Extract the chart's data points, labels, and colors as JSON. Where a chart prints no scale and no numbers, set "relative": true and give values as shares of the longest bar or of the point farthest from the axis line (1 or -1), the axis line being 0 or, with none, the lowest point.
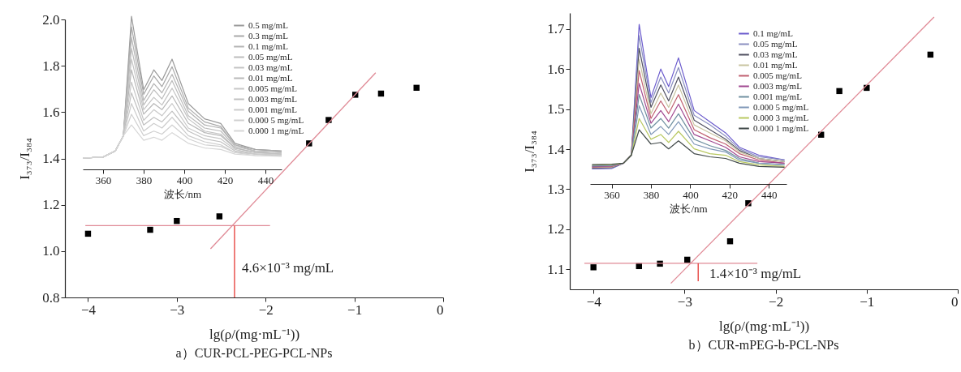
{
  "chart_data": [
    {
      "type": "scatter",
      "title": "a）CUR-PCL-PEG-PCL-NPs",
      "xlabel": "lg(ρ/(mg·mL⁻¹))",
      "ylabel": "I₃₇₃/I₃₈₄",
      "xlim": [
        -4.26,
        0
      ],
      "xticks": [
        -4,
        -3,
        -2,
        -1,
        0
      ],
      "ylim": [
        0.8,
        2.0
      ],
      "yticks": [
        0.8,
        {
          "value": 1.0,
          "label": "1.0"
        },
        1.2,
        1.4,
        1.6,
        1.8,
        {
          "value": 2.0,
          "label": "2.0"
        }
      ],
      "grid": false,
      "legend": false,
      "series": [
        {
          "marker": "square",
          "color": "#000000",
          "x": [
            -4,
            -3.3,
            -3,
            -2.52,
            -1.51,
            -1.29,
            -0.99,
            -0.7,
            -0.3
          ],
          "values": [
            1.075,
            1.092,
            1.13,
            1.15,
            1.465,
            1.566,
            1.675,
            1.68,
            1.705
          ]
        },
        {
          "type": "line",
          "color": "#e08a96",
          "x": [
            -4.03,
            -1.95
          ],
          "values": [
            1.11,
            1.11
          ]
        },
        {
          "type": "line",
          "color": "#e08a96",
          "x": [
            -2.62,
            -0.76
          ],
          "values": [
            1.01,
            1.77
          ]
        },
        {
          "type": "line",
          "color": "#e53935",
          "x": [
            -2.35,
            -2.35
          ],
          "values": [
            1.11,
            0.8
          ]
        }
      ],
      "annotations": [
        "4.6×10⁻³ mg/mL"
      ]
    },
    {
      "type": "line",
      "relative": true,
      "xlabel": "波长/nm",
      "xlim": [
        350,
        448
      ],
      "xticks": [
        360,
        380,
        400,
        420,
        440
      ],
      "tick_labels": "x",
      "grid": false,
      "legend": "top right",
      "x": [
        350,
        360,
        366,
        370,
        374,
        380,
        385,
        389,
        394,
        402,
        410,
        418,
        425,
        435,
        448
      ],
      "series": [
        {
          "name": "0.5 mg/mL",
          "color": "#9a9a9a",
          "values": [
            0.074,
            0.08,
            0.12,
            0.22,
            1.0,
            0.52,
            0.65,
            0.58,
            0.72,
            0.43,
            0.33,
            0.3,
            0.17,
            0.13,
            0.12
          ]
        },
        {
          "name": "0.3 mg/mL",
          "color": "#a8a8a8",
          "values": [
            0.074,
            0.08,
            0.12,
            0.22,
            0.93,
            0.49,
            0.61,
            0.54,
            0.67,
            0.4,
            0.31,
            0.28,
            0.16,
            0.13,
            0.12
          ]
        },
        {
          "name": "0.1 mg/mL",
          "color": "#b4b4b4",
          "values": [
            0.074,
            0.08,
            0.12,
            0.22,
            0.86,
            0.45,
            0.56,
            0.5,
            0.62,
            0.38,
            0.29,
            0.27,
            0.16,
            0.12,
            0.11
          ]
        },
        {
          "name": "0.05 mg/mL",
          "color": "#bcbcbc",
          "values": [
            0.074,
            0.08,
            0.12,
            0.22,
            0.79,
            0.42,
            0.52,
            0.46,
            0.58,
            0.35,
            0.27,
            0.25,
            0.15,
            0.12,
            0.11
          ]
        },
        {
          "name": "0.03 mg/mL",
          "color": "#c4c4c4",
          "values": [
            0.074,
            0.08,
            0.12,
            0.22,
            0.72,
            0.39,
            0.47,
            0.42,
            0.53,
            0.33,
            0.25,
            0.23,
            0.14,
            0.11,
            0.1
          ]
        },
        {
          "name": "0.01 mg/mL",
          "color": "#b8b8b8",
          "values": [
            0.074,
            0.08,
            0.12,
            0.22,
            0.65,
            0.36,
            0.43,
            0.39,
            0.48,
            0.3,
            0.24,
            0.22,
            0.14,
            0.11,
            0.1
          ]
        },
        {
          "name": "0.005 mg/mL",
          "color": "#c8c8c8",
          "values": [
            0.074,
            0.08,
            0.12,
            0.22,
            0.57,
            0.32,
            0.39,
            0.35,
            0.43,
            0.27,
            0.22,
            0.2,
            0.13,
            0.1,
            0.1
          ]
        },
        {
          "name": "0.003 mg/mL",
          "color": "#c0c0c0",
          "values": [
            0.074,
            0.08,
            0.12,
            0.22,
            0.5,
            0.29,
            0.34,
            0.31,
            0.38,
            0.25,
            0.2,
            0.18,
            0.12,
            0.1,
            0.09
          ]
        },
        {
          "name": "0.001 mg/mL",
          "color": "#cccccc",
          "values": [
            0.074,
            0.08,
            0.12,
            0.22,
            0.43,
            0.25,
            0.3,
            0.27,
            0.34,
            0.22,
            0.18,
            0.16,
            0.11,
            0.1,
            0.09
          ]
        },
        {
          "name": "0.000 5 mg/mL",
          "color": "#d0d0d0",
          "values": [
            0.074,
            0.08,
            0.12,
            0.22,
            0.36,
            0.22,
            0.25,
            0.23,
            0.29,
            0.2,
            0.16,
            0.15,
            0.11,
            0.09,
            0.09
          ]
        },
        {
          "name": "0.000 1 mg/mL",
          "color": "#d6d6d6",
          "values": [
            0.074,
            0.08,
            0.12,
            0.22,
            0.29,
            0.19,
            0.21,
            0.19,
            0.24,
            0.17,
            0.14,
            0.13,
            0.1,
            0.09,
            0.085
          ]
        }
      ]
    },
    {
      "type": "scatter",
      "title": "b）CUR-mPEG-b-PCL-NPs",
      "xlabel": "lg(ρ/(mg·mL⁻¹))",
      "ylabel": "I₃₇₃/I₃₈₄",
      "xlim": [
        -4.26,
        0
      ],
      "xticks": [
        -4,
        -3,
        -2,
        -1,
        0
      ],
      "ylim": [
        1.05,
        1.74
      ],
      "yticks": [
        1.1,
        1.2,
        1.3,
        1.4,
        1.5,
        1.6,
        1.7
      ],
      "grid": false,
      "legend": false,
      "series": [
        {
          "marker": "square",
          "color": "#000000",
          "x": [
            -4,
            -3.5,
            -3.27,
            -2.97,
            -2.5,
            -2.3,
            -1.5,
            -1.3,
            -1,
            -0.3
          ],
          "values": [
            1.105,
            1.108,
            1.114,
            1.124,
            1.17,
            1.265,
            1.436,
            1.545,
            1.553,
            1.636
          ]
        },
        {
          "type": "line",
          "color": "#e08a96",
          "x": [
            -4.1,
            -2.2
          ],
          "values": [
            1.115,
            1.115
          ]
        },
        {
          "type": "line",
          "color": "#e08a96",
          "x": [
            -3.15,
            -0.26
          ],
          "values": [
            1.065,
            1.73
          ]
        },
        {
          "type": "line",
          "color": "#e53935",
          "x": [
            -2.85,
            -2.85
          ],
          "values": [
            1.115,
            1.07
          ]
        }
      ],
      "annotations": [
        "1.4×10⁻³ mg/mL"
      ]
    },
    {
      "type": "line",
      "relative": true,
      "xlabel": "波长/nm",
      "xlim": [
        349,
        449
      ],
      "xticks": [
        360,
        380,
        400,
        420,
        440
      ],
      "tick_labels": "x",
      "grid": false,
      "legend": "top right",
      "x": [
        350,
        360,
        366,
        370,
        374,
        380,
        385,
        389,
        394,
        402,
        410,
        418,
        425,
        435,
        448
      ],
      "series": [
        {
          "name": "0.1 mg/mL",
          "color": "#6a5acd",
          "values": [
            0.094,
            0.097,
            0.13,
            0.18,
            1.0,
            0.54,
            0.72,
            0.61,
            0.79,
            0.46,
            0.39,
            0.32,
            0.23,
            0.18,
            0.15
          ]
        },
        {
          "name": "0.05 mg/mL",
          "color": "#8a8fc0",
          "values": [
            0.097,
            0.1,
            0.13,
            0.18,
            0.93,
            0.51,
            0.67,
            0.57,
            0.73,
            0.43,
            0.37,
            0.3,
            0.22,
            0.17,
            0.15
          ]
        },
        {
          "name": "0.03 mg/mL",
          "color": "#505060",
          "values": [
            0.1,
            0.103,
            0.13,
            0.18,
            0.85,
            0.48,
            0.62,
            0.52,
            0.67,
            0.4,
            0.34,
            0.28,
            0.21,
            0.16,
            0.14
          ]
        },
        {
          "name": "0.01 mg/mL",
          "color": "#c8c4a0",
          "values": [
            0.103,
            0.106,
            0.13,
            0.18,
            0.78,
            0.44,
            0.57,
            0.48,
            0.62,
            0.37,
            0.32,
            0.27,
            0.2,
            0.16,
            0.14
          ]
        },
        {
          "name": "0.005 mg/mL",
          "color": "#c06070",
          "values": [
            0.106,
            0.109,
            0.13,
            0.18,
            0.71,
            0.41,
            0.52,
            0.44,
            0.56,
            0.34,
            0.29,
            0.25,
            0.19,
            0.15,
            0.13
          ]
        },
        {
          "name": "0.003 mg/mL",
          "color": "#a04890",
          "values": [
            0.109,
            0.112,
            0.13,
            0.18,
            0.63,
            0.38,
            0.46,
            0.39,
            0.5,
            0.31,
            0.27,
            0.23,
            0.17,
            0.14,
            0.13
          ]
        },
        {
          "name": "0.001 mg/mL",
          "color": "#7090a0",
          "values": [
            0.112,
            0.115,
            0.13,
            0.18,
            0.56,
            0.35,
            0.41,
            0.35,
            0.44,
            0.28,
            0.24,
            0.21,
            0.16,
            0.13,
            0.12
          ]
        },
        {
          "name": "0.000 5 mg/mL",
          "color": "#8098b8",
          "values": [
            0.115,
            0.118,
            0.13,
            0.18,
            0.49,
            0.31,
            0.36,
            0.31,
            0.39,
            0.25,
            0.22,
            0.2,
            0.15,
            0.13,
            0.12
          ]
        },
        {
          "name": "0.000 3 mg/mL",
          "color": "#b8c860",
          "values": [
            0.118,
            0.121,
            0.13,
            0.18,
            0.41,
            0.28,
            0.31,
            0.26,
            0.33,
            0.22,
            0.19,
            0.18,
            0.14,
            0.12,
            0.11
          ]
        },
        {
          "name": "0.000 1 mg/mL",
          "color": "#404848",
          "values": [
            0.121,
            0.124,
            0.13,
            0.18,
            0.34,
            0.25,
            0.26,
            0.22,
            0.27,
            0.19,
            0.17,
            0.16,
            0.13,
            0.11,
            0.105
          ]
        }
      ]
    }
  ]
}
